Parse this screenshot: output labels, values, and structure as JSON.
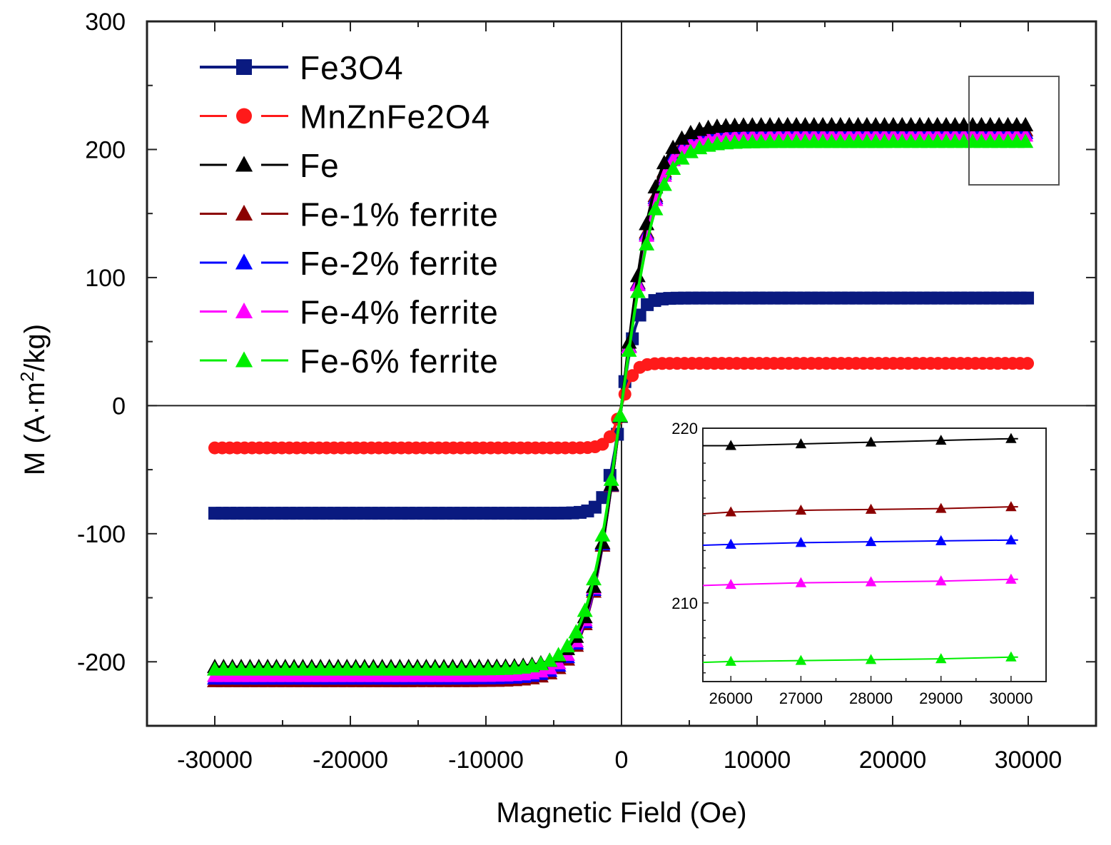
{
  "chart_data": {
    "type": "line",
    "title": "",
    "xlabel": "Magnetic Field (Oe)",
    "ylabel": "M (A·m²/kg)",
    "ylabel_parts": {
      "prefix": "M (A·m",
      "sup": "2",
      "suffix": "/kg)"
    },
    "xlim": [
      -35000,
      35000
    ],
    "ylim": [
      -250,
      300
    ],
    "xticks": [
      -30000,
      -20000,
      -10000,
      0,
      10000,
      20000,
      30000
    ],
    "xtick_labels": [
      "-30000",
      "-20000",
      "-10000",
      "0",
      "10000",
      "20000",
      "30000"
    ],
    "yticks": [
      -200,
      -100,
      0,
      100,
      200,
      300
    ],
    "ytick_labels": [
      "-200",
      "-100",
      "0",
      "100",
      "200",
      "300"
    ],
    "grid": false,
    "legend_position": "top-left",
    "x_range_measured": [
      -30000,
      30000
    ],
    "series": [
      {
        "name": "Fe3O4",
        "color": "#0a1a80",
        "marker": "square",
        "line_style": "solid",
        "Ms": 84,
        "H_half": 1100,
        "ratio": 0.5
      },
      {
        "name": "MnZnFe2O4",
        "color": "#ff1a1a",
        "marker": "circle",
        "line_style": "dashed",
        "Ms": 33,
        "H_half": 900,
        "ratio": 0.55
      },
      {
        "name": "Fe",
        "color": "#000000",
        "marker": "triangle",
        "line_style": "dashed",
        "Ms": 219,
        "Ms_neg": 204,
        "H_half": 2400,
        "ratio": 0.5
      },
      {
        "name": "Fe-1% ferrite",
        "color": "#8b0000",
        "marker": "triangle",
        "line_style": "dashed",
        "Ms": 215,
        "H_half": 2500,
        "ratio": 0.5
      },
      {
        "name": "Fe-2% ferrite",
        "color": "#0000ff",
        "marker": "triangle",
        "line_style": "dashed",
        "Ms": 213,
        "H_half": 2500,
        "ratio": 0.5
      },
      {
        "name": "Fe-4% ferrite",
        "color": "#ff00ff",
        "marker": "triangle",
        "line_style": "dashed",
        "Ms": 211,
        "H_half": 2500,
        "ratio": 0.5
      },
      {
        "name": "Fe-6% ferrite",
        "color": "#00ee00",
        "marker": "triangle",
        "line_style": "dashed",
        "Ms": 206,
        "H_half": 2600,
        "ratio": 0.5
      }
    ],
    "inset": {
      "type": "line",
      "xlim": [
        25600,
        30500
      ],
      "ylim": [
        205.5,
        220
      ],
      "xticks": [
        26000,
        27000,
        28000,
        29000,
        30000
      ],
      "xtick_labels": [
        "26000",
        "27000",
        "28000",
        "29000",
        "30000"
      ],
      "yticks": [
        210,
        220
      ],
      "ytick_labels": [
        "210",
        "220"
      ],
      "x": [
        25600,
        26000,
        27000,
        28000,
        29000,
        30000,
        30100
      ],
      "series": [
        {
          "name": "Fe",
          "color": "#000000",
          "marker": "triangle",
          "values": [
            219.0,
            219.0,
            219.1,
            219.2,
            219.3,
            219.4,
            219.4
          ]
        },
        {
          "name": "Fe-1% ferrite",
          "color": "#8b0000",
          "marker": "triangle",
          "values": [
            215.1,
            215.2,
            215.3,
            215.35,
            215.4,
            215.5,
            215.5
          ]
        },
        {
          "name": "Fe-2% ferrite",
          "color": "#0000ff",
          "marker": "triangle",
          "values": [
            213.3,
            213.35,
            213.45,
            213.5,
            213.55,
            213.6,
            213.6
          ]
        },
        {
          "name": "Fe-4% ferrite",
          "color": "#ff00ff",
          "marker": "triangle",
          "values": [
            211.0,
            211.05,
            211.15,
            211.2,
            211.25,
            211.35,
            211.35
          ]
        },
        {
          "name": "Fe-6% ferrite",
          "color": "#00ee00",
          "marker": "triangle",
          "values": [
            206.6,
            206.65,
            206.7,
            206.75,
            206.8,
            206.9,
            206.9
          ]
        }
      ]
    }
  }
}
